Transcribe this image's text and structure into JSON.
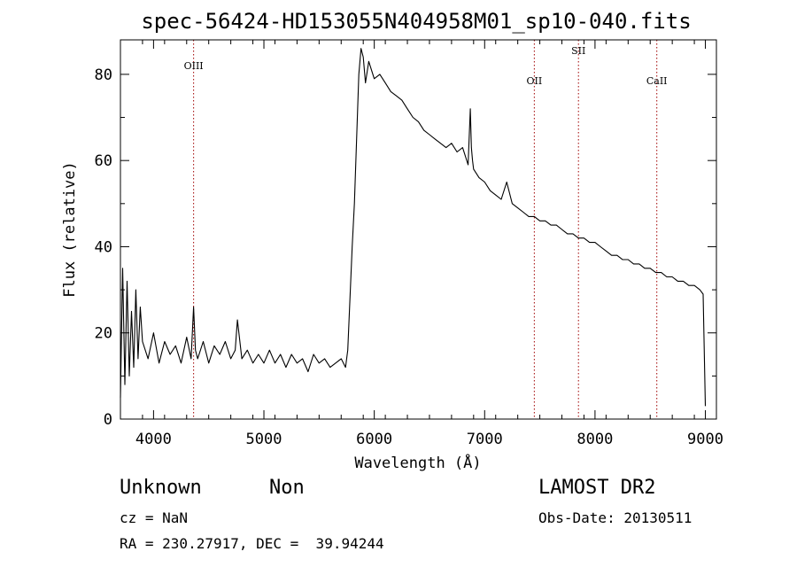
{
  "chart_data": {
    "type": "line",
    "title": "spec-56424-HD153055N404958M01_sp10-040.fits",
    "xlabel": "Wavelength (Å)",
    "ylabel": "Flux (relative)",
    "xlim": [
      3700,
      9100
    ],
    "ylim": [
      0,
      88
    ],
    "xticks": [
      4000,
      5000,
      6000,
      7000,
      8000,
      9000
    ],
    "yticks": [
      0,
      20,
      40,
      60,
      80
    ],
    "grid": false,
    "series": [
      {
        "x": [
          3700,
          3720,
          3740,
          3760,
          3780,
          3800,
          3820,
          3840,
          3860,
          3880,
          3900,
          3950,
          4000,
          4050,
          4100,
          4150,
          4200,
          4250,
          4300,
          4340,
          4363,
          4380,
          4400,
          4450,
          4500,
          4550,
          4600,
          4650,
          4700,
          4740,
          4760,
          4800,
          4850,
          4900,
          4950,
          5000,
          5050,
          5100,
          5150,
          5200,
          5250,
          5300,
          5350,
          5400,
          5450,
          5500,
          5550,
          5600,
          5650,
          5700,
          5740,
          5760,
          5780,
          5800,
          5820,
          5840,
          5860,
          5880,
          5900,
          5920,
          5950,
          6000,
          6050,
          6100,
          6150,
          6200,
          6250,
          6300,
          6350,
          6400,
          6450,
          6500,
          6550,
          6600,
          6650,
          6700,
          6750,
          6800,
          6850,
          6870,
          6880,
          6890,
          6900,
          6950,
          7000,
          7050,
          7100,
          7150,
          7200,
          7250,
          7300,
          7350,
          7400,
          7450,
          7500,
          7550,
          7600,
          7650,
          7700,
          7750,
          7800,
          7850,
          7900,
          7950,
          8000,
          8050,
          8100,
          8150,
          8200,
          8250,
          8300,
          8350,
          8400,
          8450,
          8500,
          8550,
          8600,
          8650,
          8700,
          8750,
          8800,
          8850,
          8900,
          8950,
          8980,
          9000
        ],
        "y": [
          5,
          35,
          8,
          32,
          10,
          25,
          12,
          30,
          14,
          26,
          18,
          14,
          20,
          13,
          18,
          15,
          17,
          13,
          19,
          14,
          26,
          16,
          14,
          18,
          13,
          17,
          15,
          18,
          14,
          16,
          23,
          14,
          16,
          13,
          15,
          13,
          16,
          13,
          15,
          12,
          15,
          13,
          14,
          11,
          15,
          13,
          14,
          12,
          13,
          14,
          12,
          16,
          28,
          40,
          50,
          65,
          80,
          86,
          84,
          78,
          83,
          79,
          80,
          78,
          76,
          75,
          74,
          72,
          70,
          69,
          67,
          66,
          65,
          64,
          63,
          64,
          62,
          63,
          59,
          72,
          63,
          60,
          58,
          56,
          55,
          53,
          52,
          51,
          55,
          50,
          49,
          48,
          47,
          47,
          46,
          46,
          45,
          45,
          44,
          43,
          43,
          42,
          42,
          41,
          41,
          40,
          39,
          38,
          38,
          37,
          37,
          36,
          36,
          35,
          35,
          34,
          34,
          33,
          33,
          32,
          32,
          31,
          31,
          30,
          29,
          3
        ]
      }
    ],
    "lines": [
      {
        "label": "OIII",
        "x": 4363
      },
      {
        "label": "OII",
        "x": 7450
      },
      {
        "label": "SII",
        "x": 7850
      },
      {
        "label": "CaII",
        "x": 8560
      }
    ]
  },
  "info": {
    "type_label": "Unknown",
    "subtype_label": "Non",
    "cz": "cz = NaN",
    "radec": "RA = 230.27917, DEC =  39.94244",
    "survey": "LAMOST DR2",
    "obs_date": "Obs-Date: 20130511"
  }
}
